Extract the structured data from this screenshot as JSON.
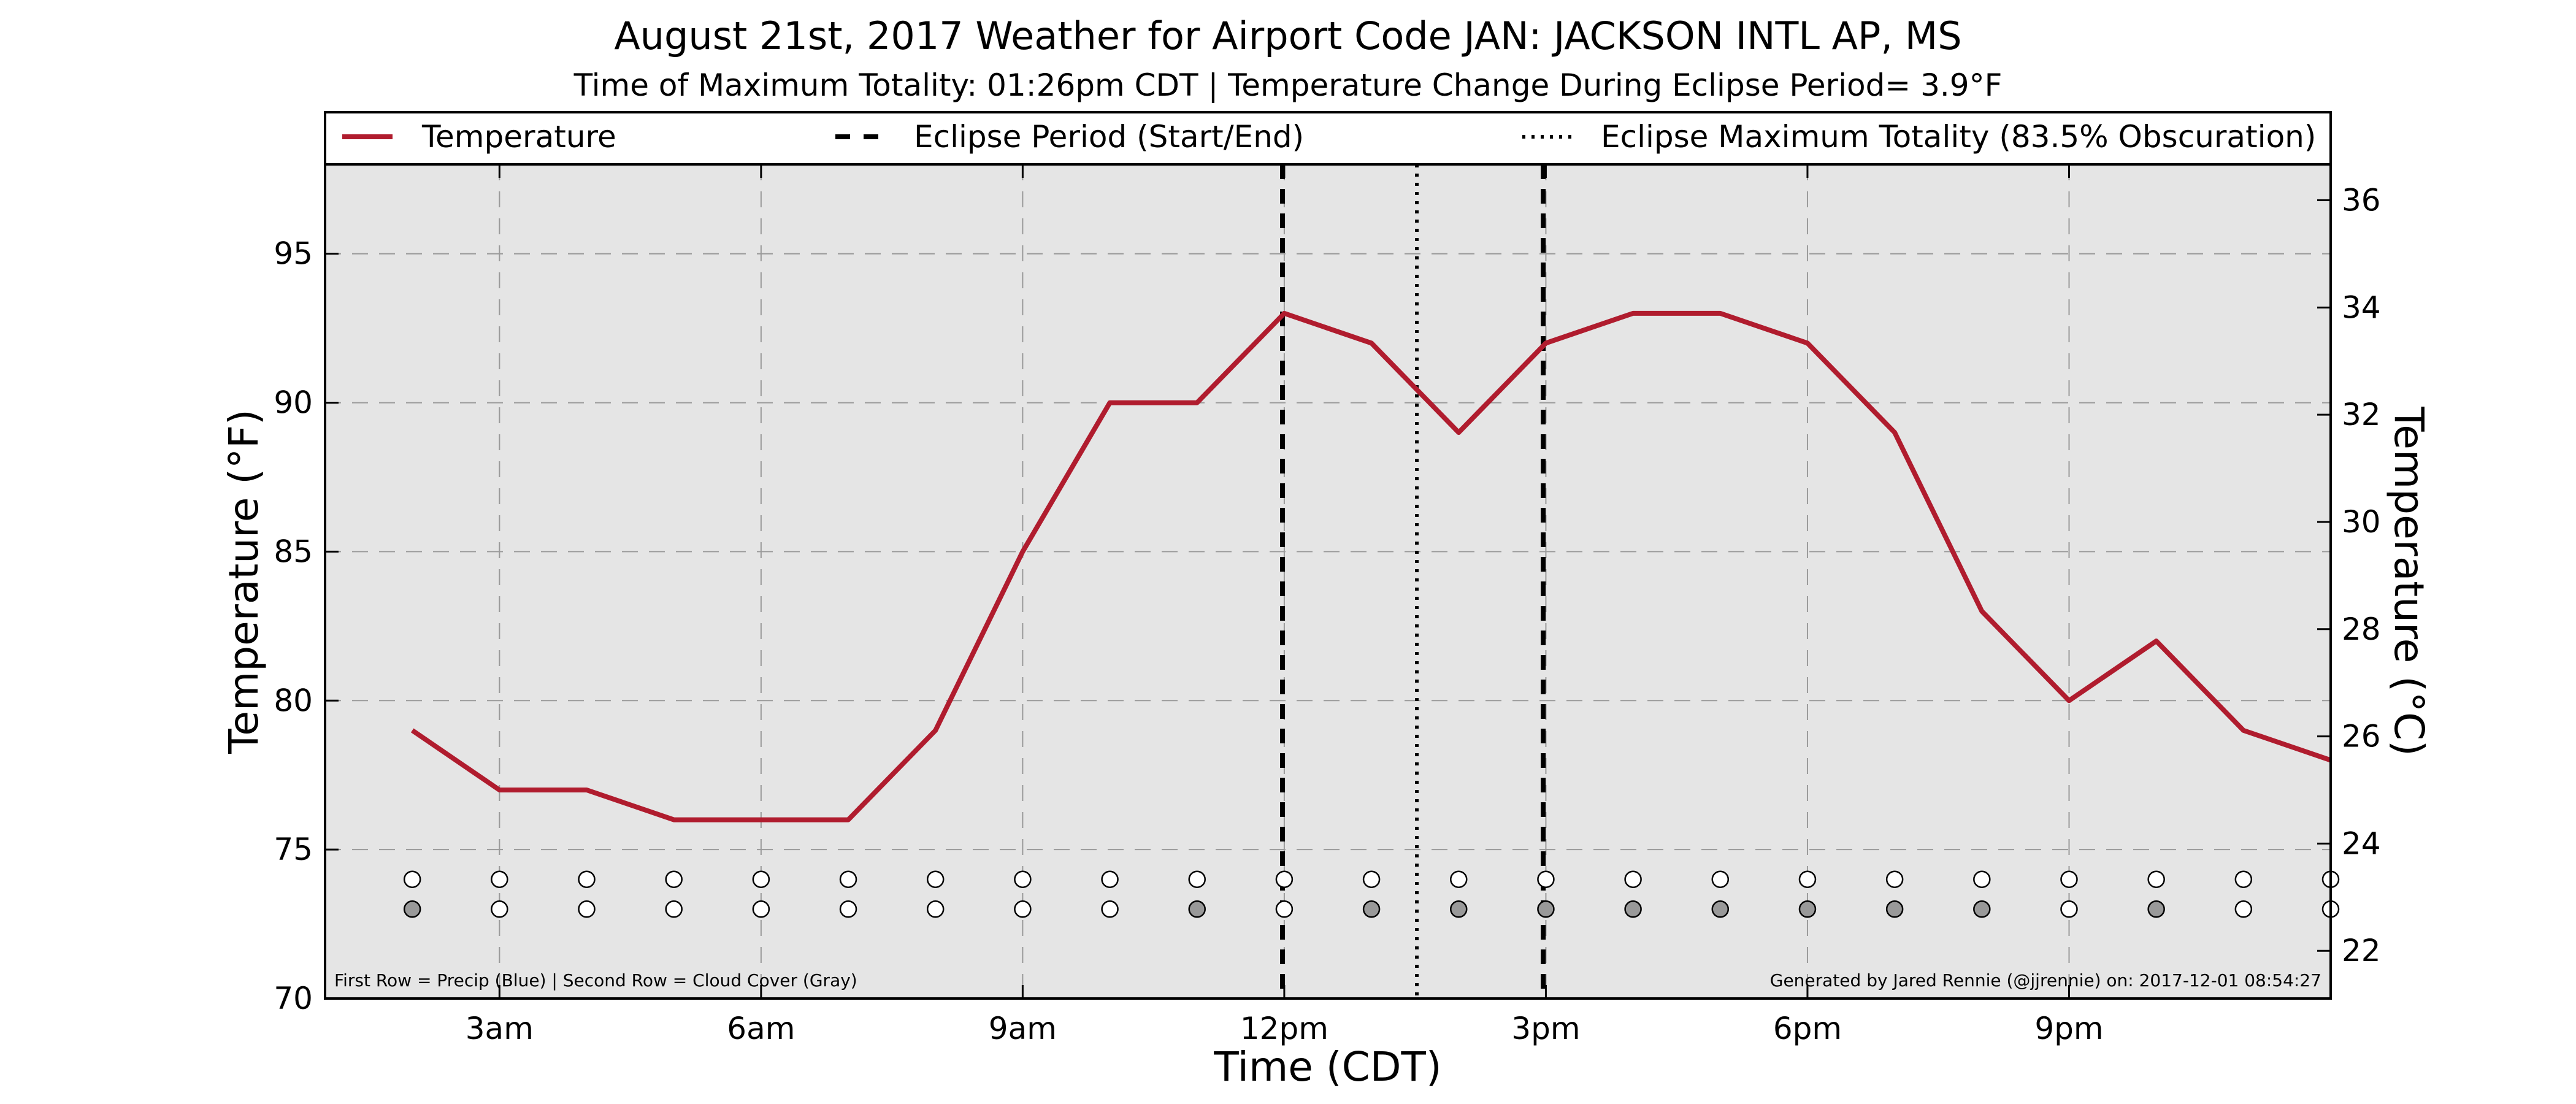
{
  "chart_data": {
    "type": "line",
    "title": "August 21st, 2017 Weather for Airport Code JAN: JACKSON INTL AP, MS",
    "subtitle": "Time of Maximum Totality: 01:26pm CDT | Temperature Change During Eclipse Period= 3.9°F",
    "xlabel": "Time (CDT)",
    "ylabel": "Temperature (°F)",
    "ylabel_right": "Temperature (°C)",
    "xlim": [
      1,
      24
    ],
    "ylim": [
      70,
      98
    ],
    "ylim_right_c": [
      21.11,
      36.67
    ],
    "x_ticks": [
      {
        "x": 3,
        "label": "3am"
      },
      {
        "x": 6,
        "label": "6am"
      },
      {
        "x": 9,
        "label": "9am"
      },
      {
        "x": 12,
        "label": "12pm"
      },
      {
        "x": 15,
        "label": "3pm"
      },
      {
        "x": 18,
        "label": "6pm"
      },
      {
        "x": 21,
        "label": "9pm"
      }
    ],
    "y_ticks_f": [
      70,
      75,
      80,
      85,
      90,
      95
    ],
    "y_ticks_c": [
      22,
      24,
      26,
      28,
      30,
      32,
      34,
      36
    ],
    "grid": true,
    "legend_position": "top",
    "series": [
      {
        "name": "Temperature",
        "color": "#b01c2e",
        "x": [
          2,
          3,
          4,
          5,
          6,
          7,
          8,
          9,
          10,
          11,
          12,
          13,
          14,
          15,
          16,
          17,
          18,
          19,
          20,
          21,
          22,
          23,
          24
        ],
        "values": [
          79,
          77,
          77,
          76,
          76,
          76,
          79,
          85,
          90,
          90,
          93,
          92,
          89,
          92,
          93,
          93,
          92,
          89,
          83,
          80,
          82,
          79,
          78
        ]
      }
    ],
    "eclipse_lines": [
      {
        "name": "Eclipse Period (Start/End)",
        "style": "dashed",
        "x": [
          11.98,
          14.97
        ]
      },
      {
        "name": "Eclipse Maximum Totality (83.5% Obscuration)",
        "style": "dotted",
        "x": [
          13.52
        ]
      }
    ],
    "indicator_rows": {
      "x": [
        2,
        3,
        4,
        5,
        6,
        7,
        8,
        9,
        10,
        11,
        12,
        13,
        14,
        15,
        16,
        17,
        18,
        19,
        20,
        21,
        22,
        23,
        24
      ],
      "precip": [
        "none",
        "none",
        "none",
        "none",
        "none",
        "none",
        "none",
        "none",
        "none",
        "none",
        "none",
        "none",
        "none",
        "none",
        "none",
        "none",
        "none",
        "none",
        "none",
        "none",
        "none",
        "none",
        "none"
      ],
      "cloud": [
        "gray",
        "none",
        "none",
        "none",
        "none",
        "none",
        "none",
        "none",
        "none",
        "gray",
        "none",
        "gray",
        "gray",
        "gray",
        "gray",
        "gray",
        "gray",
        "gray",
        "gray",
        "none",
        "gray",
        "none",
        "none"
      ]
    },
    "footnote_left": "First Row = Precip (Blue) | Second Row = Cloud Cover (Gray)",
    "footnote_right": "Generated by Jared Rennie (@jjrennie) on: 2017-12-01 08:54:27"
  },
  "legend": {
    "temperature": "Temperature",
    "eclipse_period": "Eclipse Period (Start/End)",
    "max_totality": "Eclipse Maximum Totality (83.5% Obscuration)"
  },
  "colors": {
    "plot_bg": "#e5e5e5",
    "line": "#b01c2e",
    "cloud_fill": "#999999",
    "precip_fill": "#3b6fd6",
    "empty_fill": "#ffffff"
  }
}
